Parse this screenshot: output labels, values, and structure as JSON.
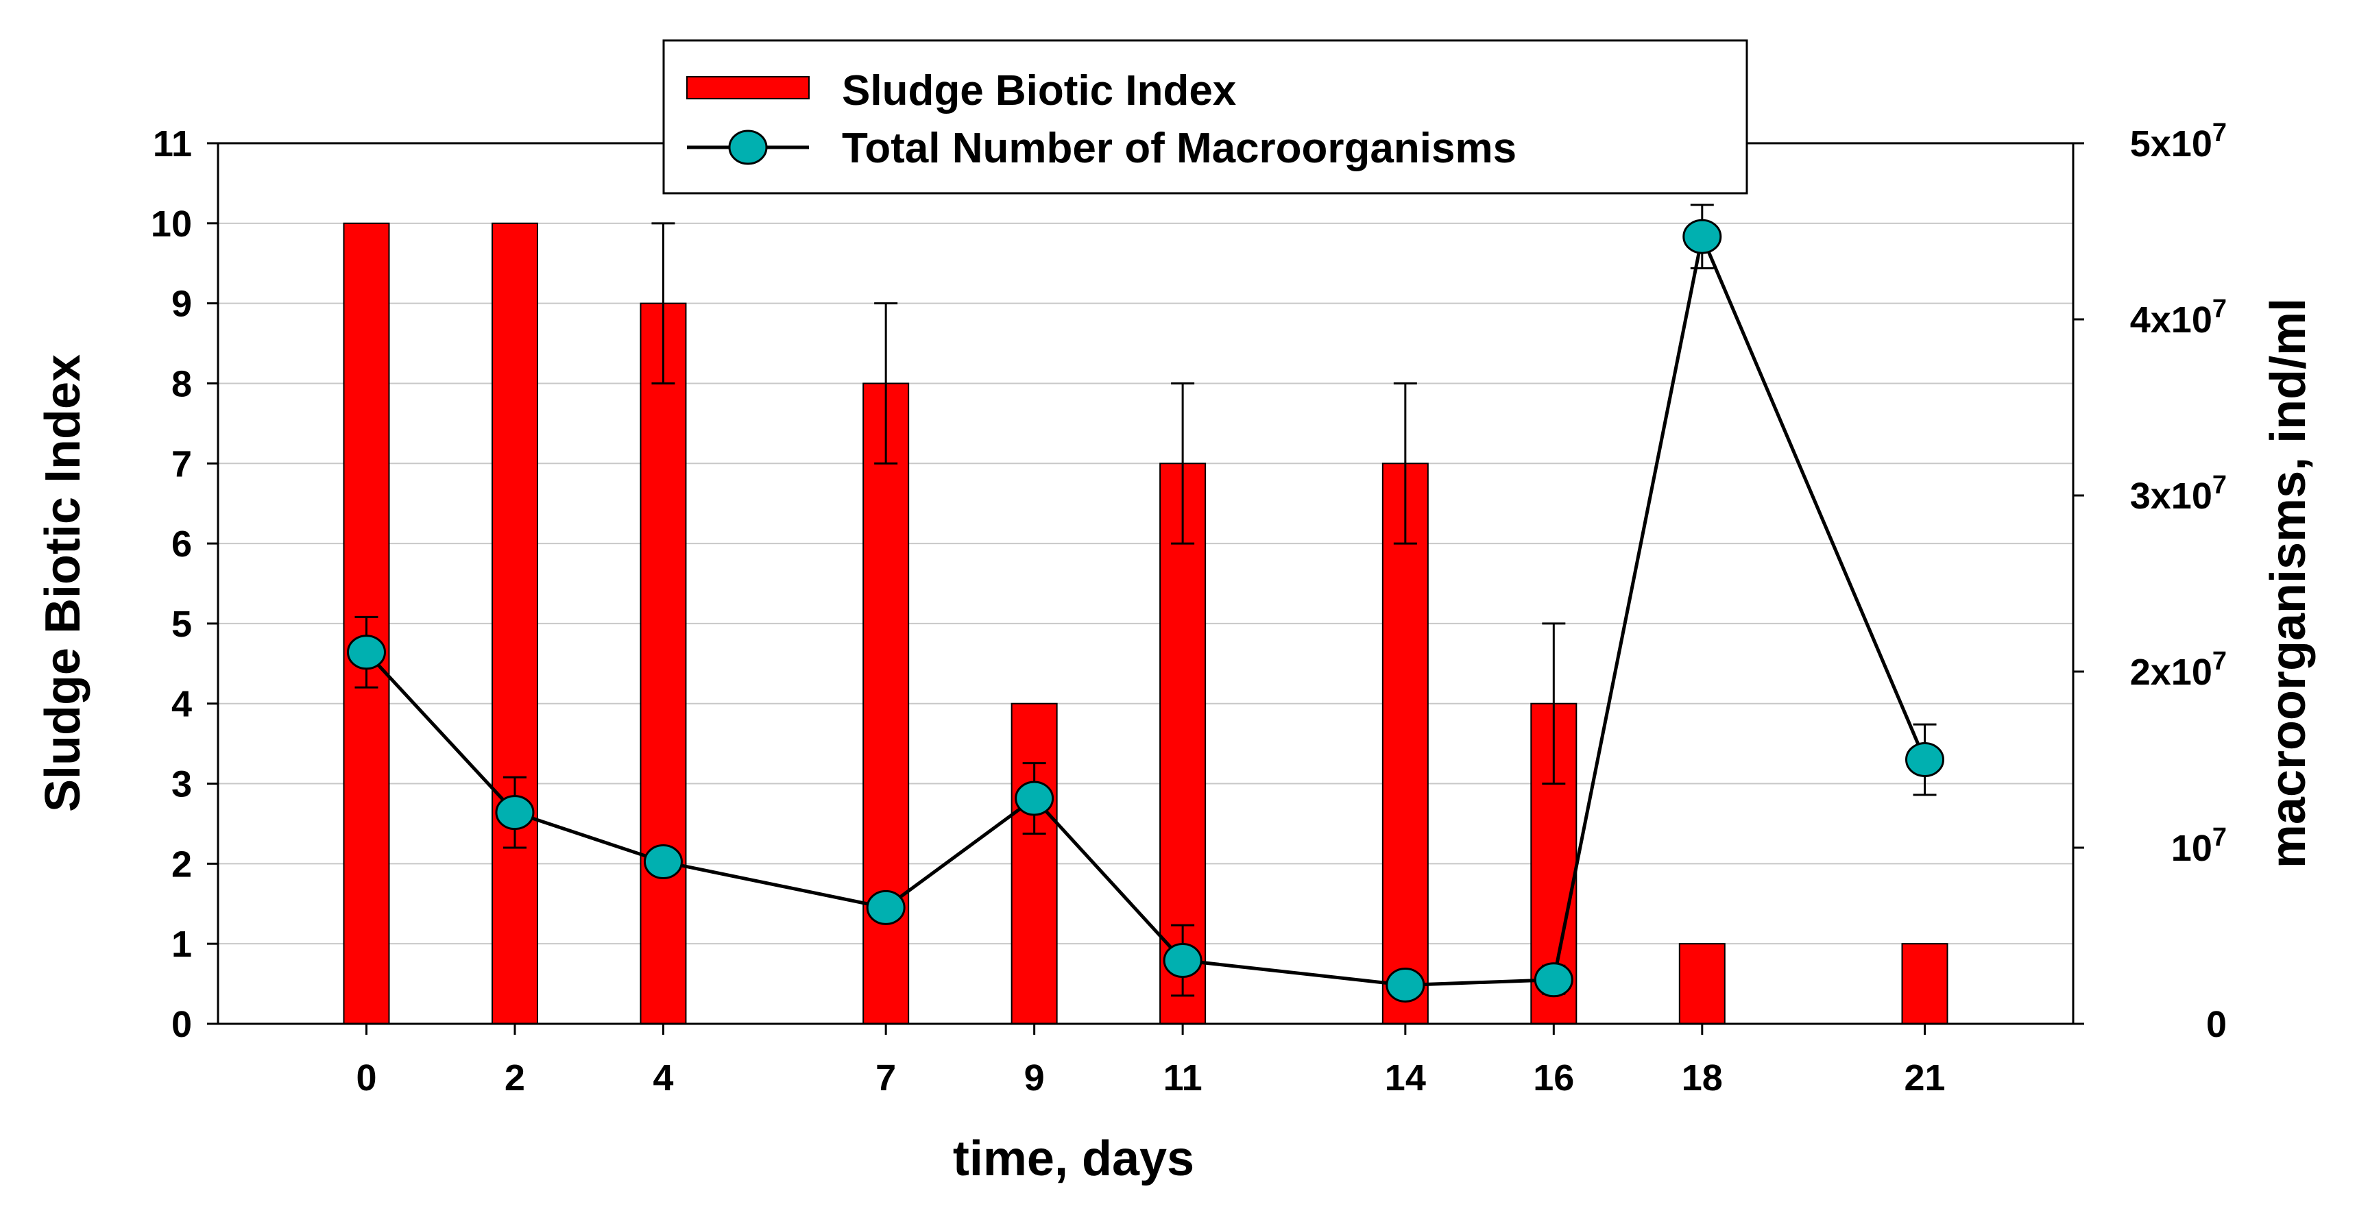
{
  "chart_data": {
    "type": "bar+line",
    "xlabel": "time, days",
    "ylabel_left": "Sludge Biotic Index",
    "ylabel_right": "macroorganisms, ind/ml",
    "x_categories": [
      "0",
      "2",
      "4",
      "7",
      "9",
      "11",
      "14",
      "16",
      "18",
      "21"
    ],
    "x_values": [
      0,
      2,
      4,
      7,
      9,
      11,
      14,
      16,
      18,
      21
    ],
    "x_range": [
      -2,
      23
    ],
    "ylim_left": [
      0,
      11
    ],
    "ylim_right": [
      0,
      50000000
    ],
    "left_ticks": [
      "0",
      "1",
      "2",
      "3",
      "4",
      "5",
      "6",
      "7",
      "8",
      "9",
      "10",
      "11"
    ],
    "right_ticks": [
      {
        "value": 0,
        "base": "0",
        "exp": ""
      },
      {
        "value": 10000000,
        "base": "10",
        "exp": "7"
      },
      {
        "value": 20000000,
        "base": "2x10",
        "exp": "7"
      },
      {
        "value": 30000000,
        "base": "3x10",
        "exp": "7"
      },
      {
        "value": 40000000,
        "base": "4x10",
        "exp": "7"
      },
      {
        "value": 50000000,
        "base": "5x10",
        "exp": "7"
      }
    ],
    "horizontal_grid": true,
    "series": [
      {
        "name": "Sludge Biotic Index",
        "kind": "bar",
        "axis": "left",
        "color": "#ff0000",
        "values": [
          10,
          10,
          9,
          8,
          4,
          7,
          7,
          4,
          1,
          1
        ],
        "error_plus": [
          0,
          0,
          1,
          1,
          0,
          1,
          1,
          1,
          0,
          0
        ],
        "error_minus": [
          0,
          0,
          1,
          1,
          0,
          1,
          1,
          1,
          0,
          0
        ]
      },
      {
        "name": "Total Number of Macroorganisms",
        "kind": "line",
        "axis": "right",
        "color": "#00b0b0",
        "values": [
          21100000,
          12000000,
          9200000,
          6600000,
          12800000,
          3600000,
          2200000,
          2500000,
          44700000,
          15000000
        ],
        "error_plus": [
          2000000,
          2000000,
          700000,
          0,
          2000000,
          2000000,
          0,
          800000,
          1800000,
          2000000
        ],
        "error_minus": [
          2000000,
          2000000,
          700000,
          0,
          2000000,
          2000000,
          0,
          800000,
          1800000,
          2000000
        ]
      }
    ],
    "legend": {
      "position": "top-center",
      "entries": [
        "Sludge Biotic Index",
        "Total Number of Macroorganisms"
      ]
    }
  }
}
